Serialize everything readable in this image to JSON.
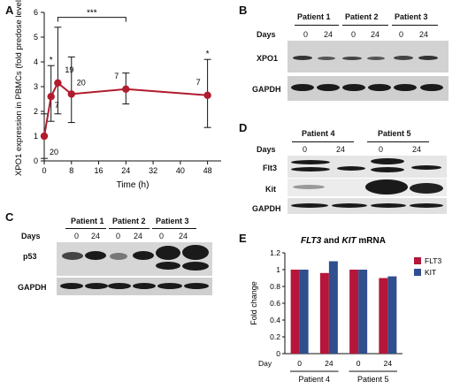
{
  "panels": {
    "A": "A",
    "B": "B",
    "C": "C",
    "D": "D",
    "E": "E"
  },
  "chart_data": [
    {
      "type": "line",
      "panel": "A",
      "xlabel": "Time (h)",
      "ylabel": "XPO1 expression in PBMCs (fold predose level)",
      "x": [
        0,
        2,
        4,
        8,
        24,
        48
      ],
      "y": [
        1.0,
        2.6,
        3.15,
        2.7,
        2.9,
        2.65
      ],
      "err_low": [
        0.1,
        1.6,
        1.9,
        1.55,
        2.3,
        1.35
      ],
      "err_high": [
        1.9,
        3.85,
        5.4,
        4.2,
        3.55,
        4.1
      ],
      "n_labels": [
        "20",
        "7",
        "19",
        "20",
        "7",
        "7"
      ],
      "significance": [
        "",
        "*",
        "",
        "",
        "",
        "*"
      ],
      "bracket": {
        "from": 4,
        "to": 24,
        "label": "***"
      },
      "xticks": [
        0,
        8,
        16,
        24,
        32,
        40,
        48
      ],
      "yticks": [
        0,
        1,
        2,
        3,
        4,
        5,
        6
      ],
      "xlim": [
        0,
        52
      ],
      "ylim": [
        0,
        6
      ],
      "color": "#b01c2e"
    },
    {
      "type": "bar",
      "panel": "E",
      "title": "FLT3 and KIT mRNA",
      "title_italic_1": "FLT3",
      "title_mid": " and ",
      "title_italic_2": "KIT",
      "title_tail": " mRNA",
      "ylabel": "Fold change",
      "xlabel_prefix": "Day",
      "categories": [
        "0",
        "24",
        "0",
        "24"
      ],
      "groups": [
        "Patient 4",
        "Patient 5"
      ],
      "series": [
        {
          "name": "FLT3",
          "color": "#b5163a",
          "values": [
            1.0,
            0.96,
            1.0,
            0.9
          ]
        },
        {
          "name": "KIT",
          "color": "#2f4f8f",
          "values": [
            1.0,
            1.1,
            1.0,
            0.92
          ]
        }
      ],
      "yticks": [
        "0",
        "0.2",
        "0.4",
        "0.6",
        "0.8",
        "1",
        "1.2"
      ],
      "ylim": [
        0,
        1.2
      ],
      "legend": "right"
    }
  ],
  "blotB": {
    "patients": [
      "Patient 1",
      "Patient 2",
      "Patient 3"
    ],
    "days_label": "Days",
    "days": [
      "0",
      "24",
      "0",
      "24",
      "0",
      "24"
    ],
    "rows": [
      "XPO1",
      "GAPDH"
    ]
  },
  "blotC": {
    "patients": [
      "Patient 1",
      "Patient 2",
      "Patient 3"
    ],
    "days_label": "Days",
    "days": [
      "0",
      "24",
      "0",
      "24",
      "0",
      "24"
    ],
    "rows": [
      "p53",
      "GAPDH"
    ]
  },
  "blotD": {
    "patients": [
      "Patient 4",
      "Patient 5"
    ],
    "days_label": "Days",
    "days": [
      "0",
      "24",
      "0",
      "24"
    ],
    "rows": [
      "Flt3",
      "Kit",
      "GAPDH"
    ]
  }
}
